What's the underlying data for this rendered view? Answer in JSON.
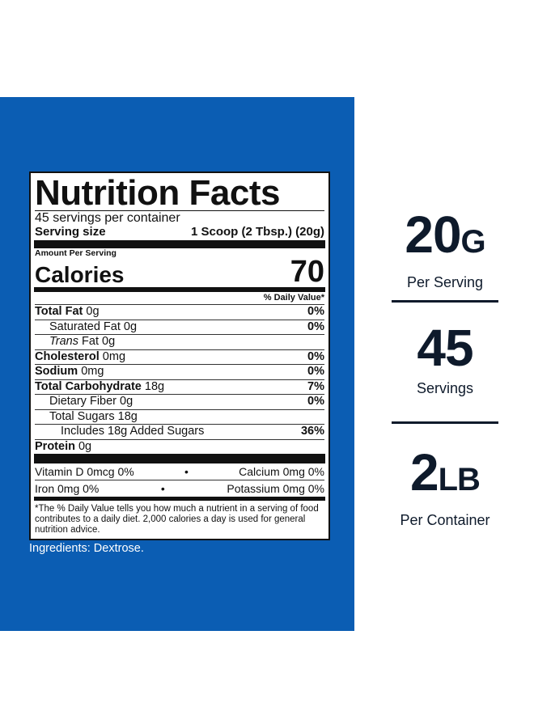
{
  "label": {
    "title": "Nutrition Facts",
    "servings": "45 servings per container",
    "serving_size_label": "Serving size",
    "serving_size": "1 Scoop (2 Tbsp.) (20g)",
    "amount_per_serving": "Amount Per Serving",
    "calories_label": "Calories",
    "calories": "70",
    "daily_value_header": "% Daily Value*",
    "nutrients": [
      {
        "name": "Total Fat",
        "amount": "0g",
        "dv": "0%"
      },
      {
        "name": "Saturated Fat",
        "amount": "0g",
        "dv": "0%"
      },
      {
        "name_italic": "Trans",
        "name": "Fat",
        "amount": "0g"
      },
      {
        "name": "Cholesterol",
        "amount": "0mg",
        "dv": "0%"
      },
      {
        "name": "Sodium",
        "amount": "0mg",
        "dv": "0%"
      },
      {
        "name": "Total Carbohydrate",
        "amount": "18g",
        "dv": "7%"
      },
      {
        "name": "Dietary Fiber",
        "amount": "0g",
        "dv": "0%"
      },
      {
        "name": "Total Sugars",
        "amount": "18g"
      },
      {
        "name": "Includes 18g Added Sugars",
        "dv": "36%"
      },
      {
        "name": "Protein",
        "amount": "0g"
      }
    ],
    "vitamins": [
      [
        {
          "name": "Vitamin D",
          "amount": "0mcg",
          "dv": "0%"
        },
        {
          "name": "Calcium",
          "amount": "0mg",
          "dv": "0%"
        }
      ],
      [
        {
          "name": "Iron",
          "amount": "0mg",
          "dv": "0%"
        },
        {
          "name": "Potassium",
          "amount": "0mg",
          "dv": "0%"
        }
      ]
    ],
    "footnote": "*The % Daily Value tells you how much a nutrient in a serving of food contributes to a daily diet. 2,000 calories a day is used for general nutrition advice."
  },
  "ingredients": "Ingredients: Dextrose.",
  "stats": [
    {
      "value": "20",
      "unit": "G",
      "label": "Per Serving"
    },
    {
      "value": "45",
      "label": "Servings"
    },
    {
      "value": "2",
      "unit": "LB",
      "label": "Per Container"
    }
  ]
}
